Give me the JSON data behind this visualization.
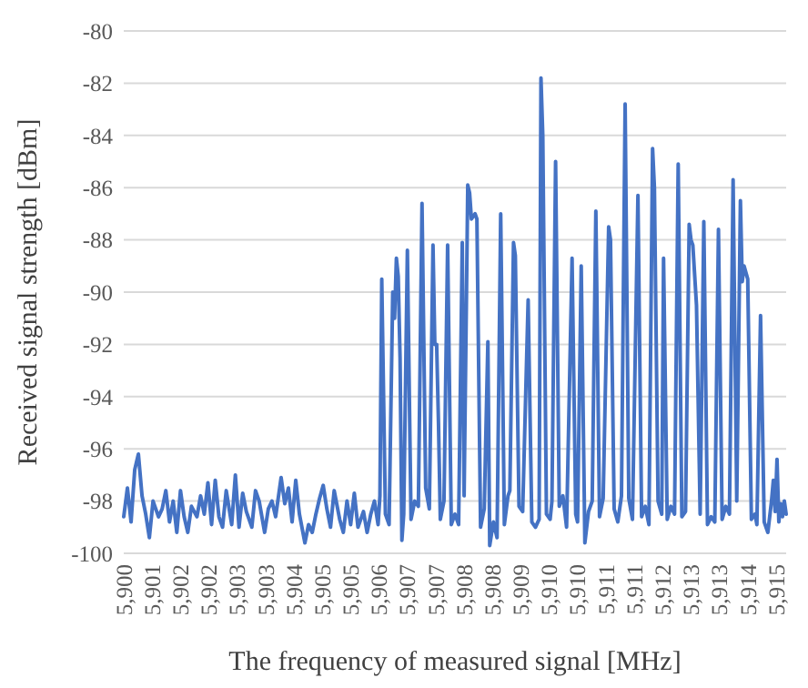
{
  "chart_data": {
    "type": "line",
    "xlabel": "The frequency of measured signal [MHz]",
    "ylabel": "Received signal strength [dBm]",
    "ylim": [
      -100,
      -80
    ],
    "yticks": [
      -100,
      -98,
      -96,
      -94,
      -92,
      -90,
      -88,
      -86,
      -84,
      -82,
      -80
    ],
    "xlim": [
      5900.32,
      5914.8
    ],
    "xticks": [
      {
        "value": 5900.32,
        "label": "5,900"
      },
      {
        "value": 5900.94,
        "label": "5,901"
      },
      {
        "value": 5901.56,
        "label": "5,902"
      },
      {
        "value": 5902.18,
        "label": "5,902"
      },
      {
        "value": 5902.8,
        "label": "5,903"
      },
      {
        "value": 5903.42,
        "label": "5,903"
      },
      {
        "value": 5904.04,
        "label": "5,904"
      },
      {
        "value": 5904.66,
        "label": "5,905"
      },
      {
        "value": 5905.28,
        "label": "5,905"
      },
      {
        "value": 5905.9,
        "label": "5,906"
      },
      {
        "value": 5906.52,
        "label": "5,907"
      },
      {
        "value": 5907.14,
        "label": "5,907"
      },
      {
        "value": 5907.76,
        "label": "5,908"
      },
      {
        "value": 5908.38,
        "label": "5,908"
      },
      {
        "value": 5909.0,
        "label": "5,909"
      },
      {
        "value": 5909.62,
        "label": "5,910"
      },
      {
        "value": 5910.24,
        "label": "5,910"
      },
      {
        "value": 5910.86,
        "label": "5,911"
      },
      {
        "value": 5911.48,
        "label": "5,911"
      },
      {
        "value": 5912.1,
        "label": "5,912"
      },
      {
        "value": 5912.72,
        "label": "5,913"
      },
      {
        "value": 5913.34,
        "label": "5,913"
      },
      {
        "value": 5913.96,
        "label": "5,914"
      },
      {
        "value": 5914.58,
        "label": "5,915"
      }
    ],
    "grid": "y",
    "marker": "none",
    "line_style": "solid",
    "series": [
      {
        "color": "#4472c4",
        "x": [
          5900.32,
          5900.4,
          5900.48,
          5900.56,
          5900.64,
          5900.72,
          5900.8,
          5900.88,
          5900.96,
          5901.08,
          5901.16,
          5901.24,
          5901.32,
          5901.4,
          5901.48,
          5901.56,
          5901.64,
          5901.72,
          5901.8,
          5901.92,
          5902.0,
          5902.08,
          5902.16,
          5902.24,
          5902.32,
          5902.4,
          5902.48,
          5902.56,
          5902.68,
          5902.76,
          5902.84,
          5902.92,
          5903.0,
          5903.12,
          5903.2,
          5903.28,
          5903.4,
          5903.48,
          5903.56,
          5903.64,
          5903.76,
          5903.84,
          5903.92,
          5904.0,
          5904.08,
          5904.16,
          5904.28,
          5904.36,
          5904.44,
          5904.52,
          5904.6,
          5904.68,
          5904.76,
          5904.84,
          5904.92,
          5905.04,
          5905.12,
          5905.2,
          5905.28,
          5905.36,
          5905.44,
          5905.56,
          5905.64,
          5905.72,
          5905.8,
          5905.88,
          5905.92,
          5905.96,
          5906.04,
          5906.12,
          5906.2,
          5906.24,
          5906.28,
          5906.32,
          5906.36,
          5906.4,
          5906.44,
          5906.52,
          5906.6,
          5906.68,
          5906.76,
          5906.84,
          5906.92,
          5907.0,
          5907.08,
          5907.12,
          5907.16,
          5907.2,
          5907.24,
          5907.32,
          5907.4,
          5907.48,
          5907.56,
          5907.64,
          5907.72,
          5907.76,
          5907.84,
          5907.88,
          5907.92,
          5908.0,
          5908.04,
          5908.12,
          5908.2,
          5908.28,
          5908.32,
          5908.4,
          5908.48,
          5908.56,
          5908.64,
          5908.72,
          5908.76,
          5908.84,
          5908.88,
          5908.96,
          5909.04,
          5909.16,
          5909.24,
          5909.32,
          5909.4,
          5909.44,
          5909.48,
          5909.56,
          5909.64,
          5909.68,
          5909.76,
          5909.84,
          5909.92,
          5910.0,
          5910.12,
          5910.2,
          5910.24,
          5910.32,
          5910.4,
          5910.48,
          5910.56,
          5910.64,
          5910.72,
          5910.8,
          5910.92,
          5910.96,
          5911.04,
          5911.12,
          5911.2,
          5911.28,
          5911.36,
          5911.44,
          5911.56,
          5911.64,
          5911.72,
          5911.8,
          5911.88,
          5911.92,
          5912.0,
          5912.08,
          5912.12,
          5912.2,
          5912.28,
          5912.36,
          5912.44,
          5912.52,
          5912.6,
          5912.68,
          5912.72,
          5912.76,
          5912.84,
          5912.92,
          5913.0,
          5913.08,
          5913.16,
          5913.24,
          5913.32,
          5913.4,
          5913.48,
          5913.56,
          5913.64,
          5913.72,
          5913.8,
          5913.84,
          5913.88,
          5913.96,
          5914.04,
          5914.12,
          5914.16,
          5914.24,
          5914.32,
          5914.4,
          5914.48,
          5914.52,
          5914.56,
          5914.6,
          5914.64,
          5914.68,
          5914.72,
          5914.76,
          5914.8
        ],
        "values": [
          -98.6,
          -97.5,
          -98.8,
          -96.8,
          -96.2,
          -97.8,
          -98.5,
          -99.4,
          -98.0,
          -98.6,
          -98.3,
          -97.6,
          -98.8,
          -98.0,
          -99.2,
          -97.6,
          -98.6,
          -99.2,
          -98.2,
          -98.6,
          -97.8,
          -98.5,
          -97.3,
          -98.9,
          -97.2,
          -98.6,
          -99.0,
          -97.6,
          -98.9,
          -97.0,
          -99.0,
          -97.7,
          -98.4,
          -99.0,
          -97.6,
          -98.0,
          -99.2,
          -98.3,
          -98.0,
          -98.6,
          -97.1,
          -98.1,
          -97.5,
          -98.8,
          -97.2,
          -98.5,
          -99.6,
          -98.9,
          -99.2,
          -98.5,
          -97.9,
          -97.4,
          -98.3,
          -99.0,
          -97.6,
          -98.7,
          -99.2,
          -98.0,
          -98.9,
          -97.7,
          -99.0,
          -98.4,
          -99.2,
          -98.5,
          -98.0,
          -98.9,
          -97.8,
          -89.5,
          -98.5,
          -98.9,
          -90.0,
          -91.0,
          -88.7,
          -89.4,
          -92.5,
          -99.5,
          -98.5,
          -88.4,
          -98.7,
          -98.0,
          -98.2,
          -86.6,
          -97.5,
          -98.3,
          -88.2,
          -92.0,
          -92.0,
          -95.0,
          -98.7,
          -98.0,
          -88.2,
          -98.9,
          -98.5,
          -98.9,
          -88.1,
          -97.8,
          -85.9,
          -86.2,
          -87.2,
          -87.0,
          -87.2,
          -99.0,
          -98.3,
          -91.9,
          -99.7,
          -98.8,
          -99.4,
          -87.0,
          -98.9,
          -97.8,
          -97.6,
          -88.1,
          -88.6,
          -98.2,
          -98.4,
          -90.3,
          -98.8,
          -99.0,
          -98.7,
          -81.8,
          -84.0,
          -98.5,
          -98.7,
          -98.0,
          -85.0,
          -98.2,
          -97.8,
          -99.0,
          -88.7,
          -98.5,
          -98.8,
          -89.0,
          -99.6,
          -98.4,
          -98.0,
          -86.9,
          -98.6,
          -97.9,
          -87.5,
          -88.0,
          -98.3,
          -98.8,
          -97.8,
          -82.8,
          -97.9,
          -98.7,
          -86.3,
          -98.6,
          -98.2,
          -98.9,
          -84.5,
          -86.0,
          -98.0,
          -98.5,
          -88.7,
          -98.7,
          -98.2,
          -98.5,
          -85.1,
          -98.6,
          -98.4,
          -87.4,
          -88.0,
          -88.2,
          -90.5,
          -98.5,
          -87.3,
          -98.9,
          -98.6,
          -98.8,
          -87.6,
          -98.7,
          -98.2,
          -98.5,
          -85.7,
          -98.0,
          -86.5,
          -89.6,
          -89.0,
          -89.5,
          -98.7,
          -98.5,
          -98.9,
          -90.9,
          -98.8,
          -99.2,
          -98.0,
          -97.2,
          -98.4,
          -96.4,
          -98.8,
          -98.1,
          -98.6,
          -98.0,
          -98.5
        ]
      }
    ]
  }
}
